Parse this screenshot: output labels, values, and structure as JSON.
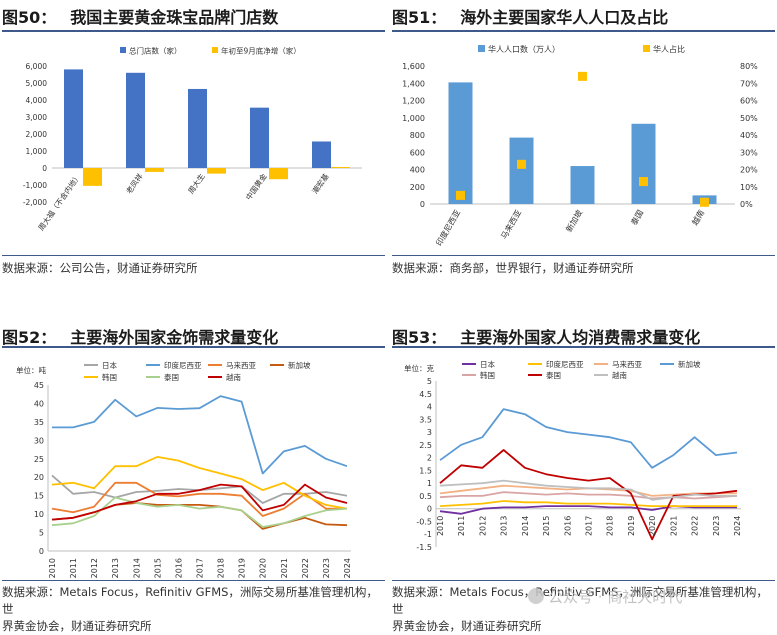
{
  "fig50": {
    "num": "图50：",
    "title": "我国主要黄金珠宝品牌门店数",
    "source": "数据来源：公司公告，财通证券研究所",
    "chart_data": {
      "type": "bar",
      "categories": [
        "周大福（不含内地）",
        "老凤祥",
        "周大生",
        "中国黄金",
        "潮宏基"
      ],
      "series": [
        {
          "name": "总门店数（家）",
          "color": "#4472c4",
          "values": [
            5800,
            5600,
            4650,
            3550,
            1560
          ]
        },
        {
          "name": "年初至9月底净增（家）",
          "color": "#ffc000",
          "values": [
            -1050,
            -230,
            -330,
            -660,
            60
          ]
        }
      ],
      "ylim": [
        -2000,
        6000
      ],
      "yticks": [
        "-2,000",
        "-1,000",
        "0",
        "1,000",
        "2,000",
        "3,000",
        "4,000",
        "5,000",
        "6,000"
      ]
    }
  },
  "fig51": {
    "num": "图51：",
    "title": "海外主要国家华人人口及占比",
    "source": "数据来源：商务部，世界银行，财通证券研究所",
    "chart_data": {
      "type": "bar",
      "categories": [
        "印度尼西亚",
        "马来西亚",
        "新加坡",
        "泰国",
        "越南"
      ],
      "series": [
        {
          "name": "华人人口数（万人）",
          "color": "#5b9bd5",
          "axis": "left",
          "values": [
            1410,
            770,
            440,
            930,
            100
          ]
        },
        {
          "name": "华人占比",
          "color": "#ffc000",
          "axis": "right",
          "marker": "square",
          "values": [
            0.05,
            0.23,
            0.74,
            0.13,
            0.01
          ]
        }
      ],
      "ylim": [
        0,
        1600
      ],
      "yticks": [
        "0",
        "200",
        "400",
        "600",
        "800",
        "1,000",
        "1,200",
        "1,400",
        "1,600"
      ],
      "y2lim": [
        0,
        0.8
      ],
      "y2ticks": [
        "0%",
        "10%",
        "20%",
        "30%",
        "40%",
        "50%",
        "60%",
        "70%",
        "80%"
      ]
    }
  },
  "fig52": {
    "num": "图52：",
    "title": "主要海外国家金饰需求量变化",
    "source": "数据来源：Metals Focus，Refinitiv GFMS，洲际交易所基准管理机构，世界黄金协会，财通证券研究所",
    "source_line1": "数据来源：Metals Focus，Refinitiv GFMS，洲际交易所基准管理机构，世",
    "source_line2": "界黄金协会，财通证券研究所",
    "chart_data": {
      "type": "line",
      "unit": "单位：吨",
      "x": [
        "2010",
        "2011",
        "2012",
        "2013",
        "2014",
        "2015",
        "2016",
        "2017",
        "2018",
        "2019",
        "2020",
        "2021",
        "2022",
        "2023",
        "2024"
      ],
      "ylim": [
        0,
        45
      ],
      "yticks": [
        "0",
        "5",
        "10",
        "15",
        "20",
        "25",
        "30",
        "35",
        "40",
        "45"
      ],
      "series": [
        {
          "name": "日本",
          "color": "#a6a6a6",
          "values": [
            20.5,
            15.5,
            16,
            14.5,
            16,
            16.3,
            16.8,
            16.5,
            17,
            17.5,
            13,
            15.5,
            15.5,
            16,
            15
          ]
        },
        {
          "name": "印度尼西亚",
          "color": "#5b9bd5",
          "values": [
            33.5,
            33.5,
            35,
            41,
            36.5,
            38.8,
            38.5,
            38.7,
            42,
            40.5,
            21,
            27,
            28.5,
            25,
            23
          ]
        },
        {
          "name": "马来西亚",
          "color": "#ed7d31",
          "values": [
            11.5,
            10.5,
            12,
            18.5,
            18.5,
            15.2,
            14.8,
            15.5,
            15.5,
            15,
            9.5,
            11.5,
            15.5,
            11.5,
            11.5
          ]
        },
        {
          "name": "新加坡",
          "color": "#c55a11",
          "values": [
            8.5,
            9,
            10.5,
            12.5,
            13,
            12.5,
            12.5,
            12.5,
            12,
            11,
            6,
            7.5,
            9,
            7.2,
            7
          ]
        },
        {
          "name": "韩国",
          "color": "#ffc000",
          "values": [
            18,
            18.5,
            17,
            23,
            23,
            25.5,
            24.5,
            22.5,
            21,
            19.5,
            16.5,
            18.5,
            15,
            12.5,
            11.5
          ]
        },
        {
          "name": "泰国",
          "color": "#a9d18e",
          "values": [
            7,
            7.5,
            9.5,
            14.5,
            13,
            12,
            12.5,
            11.5,
            12,
            11,
            6.5,
            7.5,
            9.5,
            11,
            11.5
          ]
        },
        {
          "name": "越南",
          "color": "#c00000",
          "values": [
            8.5,
            9,
            10.5,
            12.5,
            13.5,
            15.5,
            15.5,
            16.5,
            18,
            17.5,
            11,
            12.5,
            18,
            14.5,
            13
          ]
        }
      ]
    }
  },
  "fig53": {
    "num": "图53：",
    "title": "主要海外国家人均消费需求量变化",
    "source_line1": "数据来源：Metals Focus，Refinitiv GFMS，洲际交易所基准管理机构，世",
    "source_line2": "界黄金协会，财通证券研究所",
    "watermark": "公众号 · 商社大时代",
    "chart_data": {
      "type": "line",
      "unit": "单位：克",
      "x": [
        "2010",
        "2011",
        "2012",
        "2013",
        "2014",
        "2015",
        "2016",
        "2017",
        "2018",
        "2019",
        "2020",
        "2021",
        "2022",
        "2023",
        "2024"
      ],
      "ylim": [
        -1.5,
        5
      ],
      "yticks": [
        "-1.5",
        "-1",
        "-0.5",
        "0",
        "0.5",
        "1",
        "1.5",
        "2",
        "2.5",
        "3",
        "3.5",
        "4",
        "4.5",
        "5"
      ],
      "series": [
        {
          "name": "日本",
          "color": "#7030a0",
          "values": [
            -0.1,
            -0.2,
            0,
            0.05,
            0.05,
            0.1,
            0.1,
            0.1,
            0.05,
            0.05,
            -0.05,
            0.1,
            0.05,
            0.05,
            0.05
          ]
        },
        {
          "name": "印度尼西亚",
          "color": "#ffc000",
          "values": [
            0.1,
            0.15,
            0.2,
            0.3,
            0.25,
            0.25,
            0.2,
            0.2,
            0.2,
            0.15,
            0.1,
            0.1,
            0.1,
            0.1,
            0.1
          ]
        },
        {
          "name": "马来西亚",
          "color": "#f4b183",
          "values": [
            0.6,
            0.7,
            0.8,
            0.9,
            0.85,
            0.8,
            0.75,
            0.8,
            0.75,
            0.7,
            0.5,
            0.55,
            0.6,
            0.6,
            0.6
          ]
        },
        {
          "name": "新加坡",
          "color": "#5b9bd5",
          "values": [
            1.9,
            2.5,
            2.8,
            3.9,
            3.7,
            3.2,
            3.0,
            2.9,
            2.8,
            2.6,
            1.6,
            2.1,
            2.8,
            2.1,
            2.2
          ]
        },
        {
          "name": "韩国",
          "color": "#d9a4a4",
          "values": [
            0.45,
            0.5,
            0.5,
            0.65,
            0.6,
            0.55,
            0.6,
            0.55,
            0.55,
            0.5,
            0.4,
            0.45,
            0.4,
            0.45,
            0.5
          ]
        },
        {
          "name": "泰国",
          "color": "#c00000",
          "values": [
            1.0,
            1.7,
            1.6,
            2.3,
            1.6,
            1.35,
            1.2,
            1.1,
            1.2,
            0.6,
            -1.2,
            0.5,
            0.55,
            0.6,
            0.7
          ]
        },
        {
          "name": "越南",
          "color": "#bfbfbf",
          "values": [
            0.9,
            0.95,
            1.0,
            1.1,
            1.0,
            0.9,
            0.85,
            0.8,
            0.8,
            0.75,
            0.35,
            0.45,
            0.55,
            0.5,
            0.5
          ]
        }
      ]
    }
  }
}
